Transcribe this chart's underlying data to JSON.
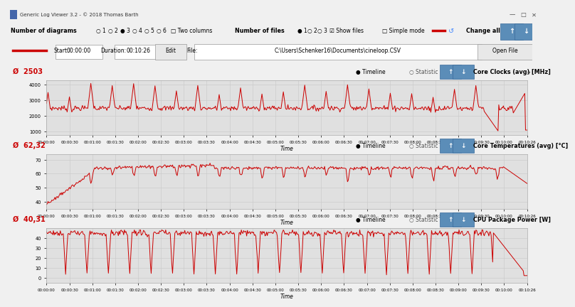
{
  "title": "Generic Log Viewer 3.2 - © 2018 Thomas Barth",
  "bg_color": "#f0f0f0",
  "toolbar_bg": "#f0f0f0",
  "chart_bg": "#e8e8e8",
  "chart_plot_bg": "#e0e0e0",
  "line_color": "#cc0000",
  "chart1_label": "Ø  2503",
  "chart1_ylabel_vals": [
    1000,
    2000,
    3000,
    4000
  ],
  "chart1_ylim": [
    800,
    4300
  ],
  "chart1_title": "Core Clocks (avg) [MHz]",
  "chart2_label": "Ø  62,32",
  "chart2_ylabel_vals": [
    40,
    50,
    60,
    70
  ],
  "chart2_ylim": [
    35,
    74
  ],
  "chart2_title": "Core Temperatures (avg) [°C]",
  "chart3_label": "Ø  40,31",
  "chart3_ylabel_vals": [
    0,
    10,
    20,
    30,
    40
  ],
  "chart3_ylim": [
    -5,
    50
  ],
  "chart3_title": "CPU Package Power [W]",
  "time_label": "Time",
  "num_points": 630,
  "time_ticks": [
    "00:00:00",
    "00:00:30",
    "00:01:00",
    "00:01:30",
    "00:02:00",
    "00:02:30",
    "00:03:00",
    "00:03:30",
    "00:04:00",
    "00:04:30",
    "00:05:00",
    "00:05:30",
    "00:06:00",
    "00:06:30",
    "00:07:00",
    "00:07:30",
    "00:08:00",
    "00:08:30",
    "00:09:00",
    "00:09:30",
    "00:10:00",
    "00:10:26"
  ],
  "separator_color": "#bbbbbb",
  "grid_color": "#cccccc",
  "btn_color": "#5b8db8",
  "titlebar_bg": "#f0f0f0"
}
